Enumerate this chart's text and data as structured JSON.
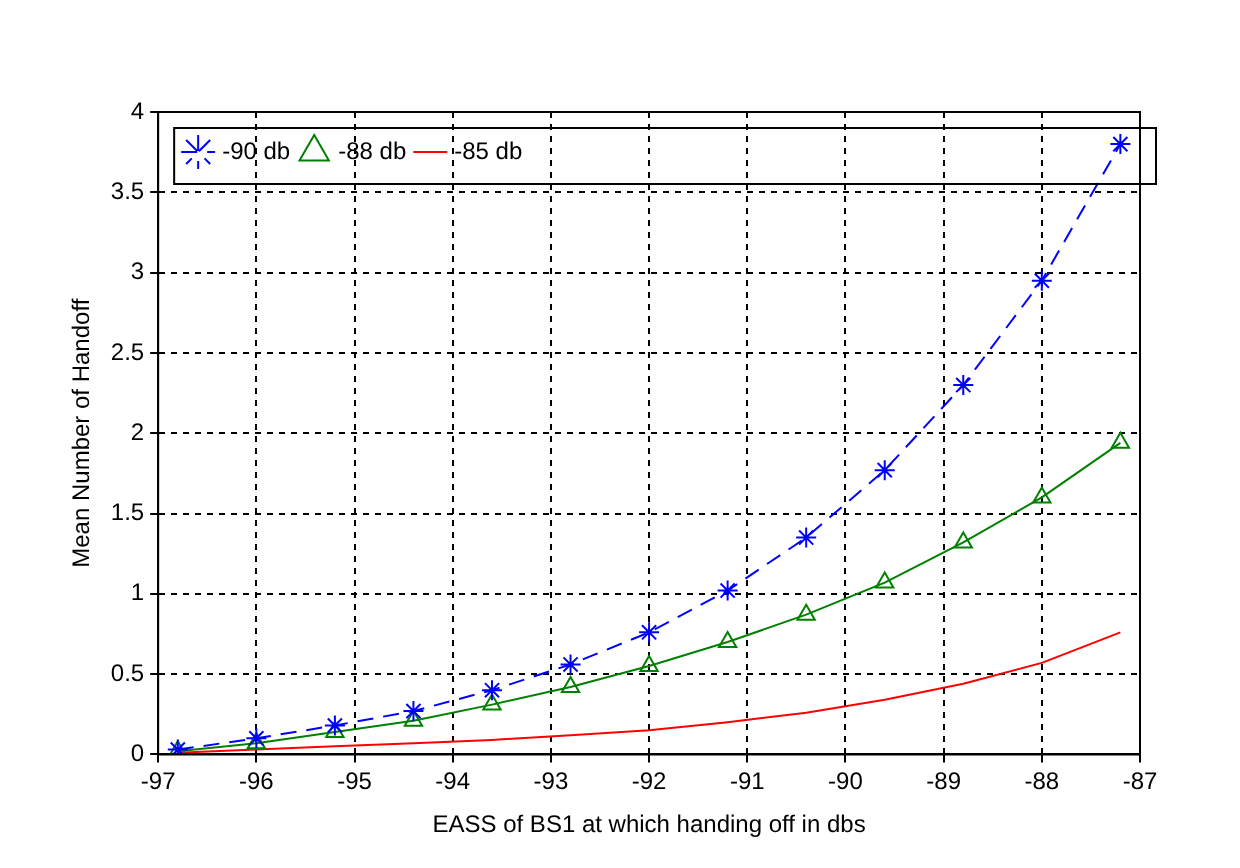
{
  "chart_data": {
    "type": "line",
    "xlabel": "EASS of BS1 at which handing off in dbs",
    "ylabel": "Mean Number of Handoff",
    "x": [
      -96.8,
      -96,
      -95.2,
      -94.4,
      -93.6,
      -92.8,
      -92,
      -91.2,
      -90.4,
      -89.6,
      -88.8,
      -88,
      -87.2
    ],
    "series": [
      {
        "name": "-90 db",
        "color": "#0000ff",
        "marker": "cross",
        "line_style": "dashed",
        "values": [
          0.03,
          0.1,
          0.18,
          0.27,
          0.4,
          0.56,
          0.76,
          1.02,
          1.35,
          1.77,
          2.3,
          2.95,
          3.8
        ]
      },
      {
        "name": "-88 db",
        "color": "#008000",
        "marker": "triangle",
        "line_style": "solid",
        "values": [
          0.02,
          0.07,
          0.14,
          0.21,
          0.31,
          0.42,
          0.55,
          0.7,
          0.87,
          1.07,
          1.32,
          1.6,
          1.94
        ]
      },
      {
        "name": "-85 db",
        "color": "#ff0000",
        "marker": "none",
        "line_style": "solid",
        "values": [
          0.01,
          0.03,
          0.05,
          0.07,
          0.09,
          0.12,
          0.15,
          0.2,
          0.26,
          0.34,
          0.44,
          0.57,
          0.76
        ]
      }
    ],
    "xlim": [
      -97,
      -87
    ],
    "xticks": [
      -97,
      -96,
      -95,
      -94,
      -93,
      -92,
      -91,
      -90,
      -89,
      -88,
      -87
    ],
    "ylim": [
      0,
      4
    ],
    "yticks": [
      0,
      0.5,
      1,
      1.5,
      2,
      2.5,
      3,
      3.5,
      4
    ],
    "grid": true,
    "legend": "top left"
  }
}
